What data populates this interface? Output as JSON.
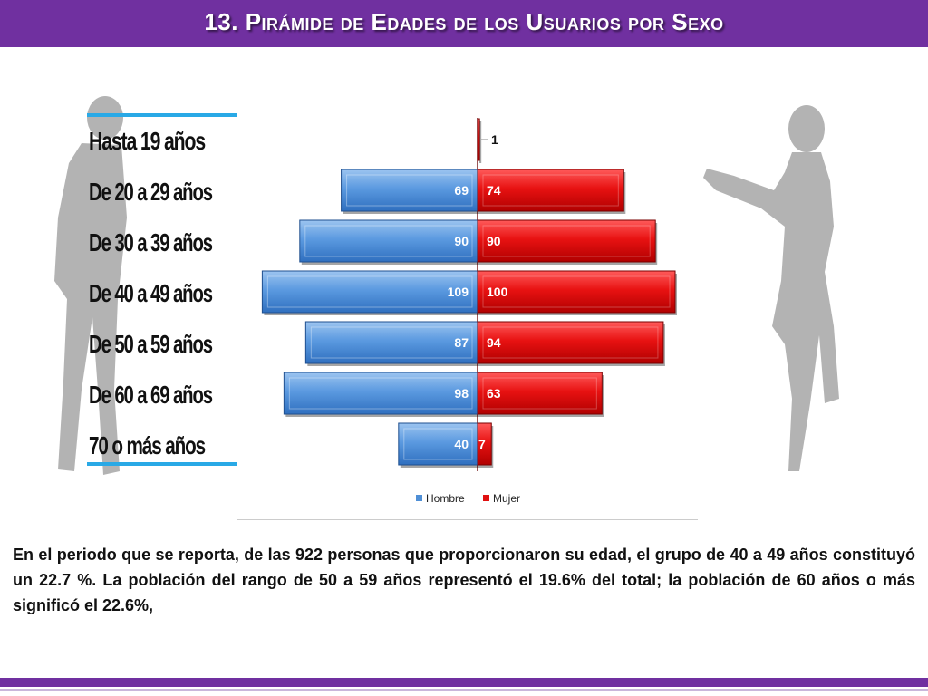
{
  "slide": {
    "title": "13. Pirámide de Edades de los Usuarios por Sexo",
    "paragraph": "En el periodo que se reporta, de las 922 personas que proporcionaron su edad, el grupo de 40 a 49 años constituyó un 22.7 %. La población del rango de 50 a 59 años representó el 19.6% del total; la población de 60 años o más significó el 22.6%,",
    "accent_color": "#7030a0"
  },
  "chart_data": {
    "type": "bar",
    "orientation": "horizontal-pyramid",
    "categories": [
      "Hasta 19 años",
      "De 20 a 29 años",
      "De 30 a 39 años",
      "De 40 a 49 años",
      "De 50 a 59 años",
      "De 60 a 69 años",
      "70 o más años"
    ],
    "series": [
      {
        "name": "Hombre",
        "values": [
          0,
          69,
          90,
          109,
          87,
          98,
          40
        ],
        "color": "#4f8fd6"
      },
      {
        "name": "Mujer",
        "values": [
          1,
          74,
          90,
          100,
          94,
          63,
          7
        ],
        "color": "#e01010"
      }
    ],
    "data_labels": {
      "Hombre": [
        "",
        "69",
        "90",
        "109",
        "87",
        "98",
        "40"
      ],
      "Mujer": [
        "1",
        "74",
        "90",
        "100",
        "94",
        "63",
        "7"
      ]
    },
    "xlim": [
      -110,
      110
    ],
    "legend_position": "bottom",
    "grid": false
  }
}
